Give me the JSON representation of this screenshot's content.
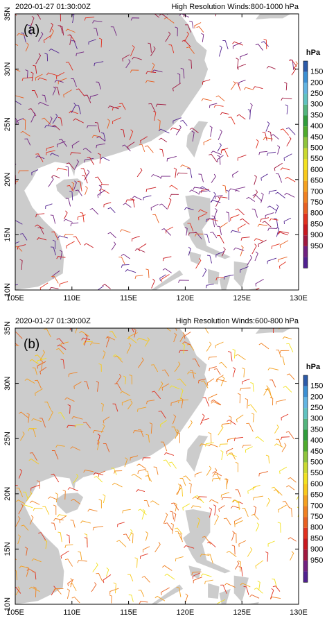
{
  "panels": [
    {
      "label": "(a)",
      "timestamp": "2020-01-27 01:30:00Z",
      "title": "High Resolution Winds:800-1000 hPa",
      "xticks": [
        {
          "value": 105,
          "label": "105E"
        },
        {
          "value": 110,
          "label": "110E"
        },
        {
          "value": 115,
          "label": "115E"
        },
        {
          "value": 120,
          "label": "120E"
        },
        {
          "value": 125,
          "label": "125E"
        },
        {
          "value": 130,
          "label": "130E"
        }
      ],
      "yticks": [
        {
          "value": 10,
          "label": "10N"
        },
        {
          "value": 15,
          "label": "15N"
        },
        {
          "value": 20,
          "label": "20N"
        },
        {
          "value": 25,
          "label": "25N"
        },
        {
          "value": 30,
          "label": "30N"
        },
        {
          "value": 35,
          "label": "35N"
        }
      ],
      "colorbar": {
        "title": "hPa",
        "levels": [
          150,
          200,
          250,
          300,
          350,
          400,
          450,
          500,
          550,
          600,
          650,
          700,
          750,
          800,
          850,
          900,
          950
        ],
        "colors": [
          "#2c5aa8",
          "#3b8fd3",
          "#62b4e2",
          "#5fc2c0",
          "#52b47c",
          "#2f9c3b",
          "#4eab2b",
          "#8ec43b",
          "#cad92f",
          "#f2e11f",
          "#f8c81a",
          "#f4a01f",
          "#f08021",
          "#e85f21",
          "#e0301f",
          "#c8181f",
          "#a0183f",
          "#70207f",
          "#50208f"
        ]
      }
    },
    {
      "label": "(b)",
      "timestamp": "2020-01-27 01:30:00Z",
      "title": "High Resolution Winds:600-800 hPa",
      "xticks": [
        {
          "value": 105,
          "label": "105E"
        },
        {
          "value": 110,
          "label": "110E"
        },
        {
          "value": 115,
          "label": "115E"
        },
        {
          "value": 120,
          "label": "120E"
        },
        {
          "value": 125,
          "label": "125E"
        },
        {
          "value": 130,
          "label": "130E"
        }
      ],
      "yticks": [
        {
          "value": 10,
          "label": "10N"
        },
        {
          "value": 15,
          "label": "15N"
        },
        {
          "value": 20,
          "label": "20N"
        },
        {
          "value": 25,
          "label": "25N"
        },
        {
          "value": 30,
          "label": "30N"
        },
        {
          "value": 35,
          "label": "35N"
        }
      ],
      "colorbar": {
        "title": "hPa",
        "levels": [
          150,
          200,
          250,
          300,
          350,
          400,
          450,
          500,
          550,
          600,
          650,
          700,
          750,
          800,
          850,
          900,
          950
        ],
        "colors": [
          "#2c5aa8",
          "#3b8fd3",
          "#62b4e2",
          "#5fc2c0",
          "#52b47c",
          "#2f9c3b",
          "#4eab2b",
          "#8ec43b",
          "#cad92f",
          "#f2e11f",
          "#f8c81a",
          "#f4a01f",
          "#f08021",
          "#e85f21",
          "#e0301f",
          "#c8181f",
          "#a0183f",
          "#70207f",
          "#50208f"
        ]
      }
    }
  ]
}
